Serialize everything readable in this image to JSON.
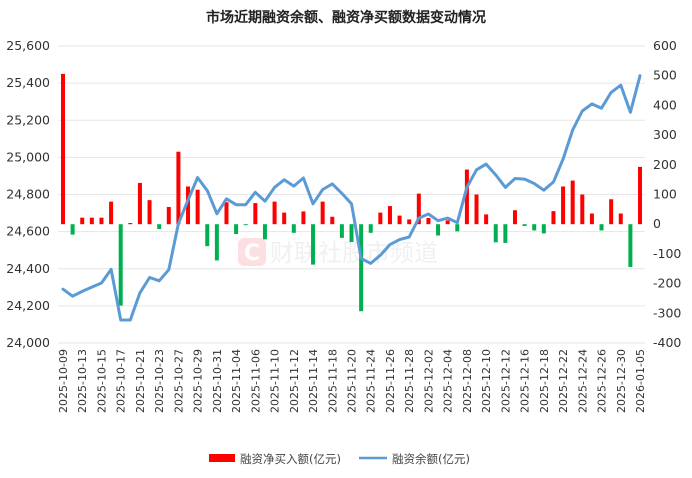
{
  "chart_data": {
    "type": "bar+line",
    "title": "市场近期融资余额、融资净买额数据变动情况",
    "watermark": "财联社股市频道",
    "legend_position": "bottom",
    "grid": true,
    "colors": {
      "positive_bar": "#ff0000",
      "negative_bar": "#00b050",
      "line": "#5b9bd5"
    },
    "x": [
      "2025-10-09",
      "2025-10-10",
      "2025-10-13",
      "2025-10-14",
      "2025-10-15",
      "2025-10-16",
      "2025-10-17",
      "2025-10-20",
      "2025-10-21",
      "2025-10-22",
      "2025-10-23",
      "2025-10-24",
      "2025-10-27",
      "2025-10-28",
      "2025-10-29",
      "2025-10-30",
      "2025-10-31",
      "2025-11-03",
      "2025-11-04",
      "2025-11-05",
      "2025-11-06",
      "2025-11-07",
      "2025-11-10",
      "2025-11-11",
      "2025-11-12",
      "2025-11-13",
      "2025-11-14",
      "2025-11-17",
      "2025-11-18",
      "2025-11-19",
      "2025-11-20",
      "2025-11-21",
      "2025-11-24",
      "2025-11-25",
      "2025-11-26",
      "2025-11-27",
      "2025-11-28",
      "2025-12-01",
      "2025-12-02",
      "2025-12-03",
      "2025-12-04",
      "2025-12-05",
      "2025-12-08",
      "2025-12-09",
      "2025-12-10",
      "2025-12-11",
      "2025-12-12",
      "2025-12-15",
      "2025-12-16",
      "2025-12-17",
      "2025-12-18",
      "2025-12-19",
      "2025-12-22",
      "2025-12-23",
      "2025-12-24",
      "2025-12-25",
      "2025-12-26",
      "2025-12-29",
      "2025-12-30",
      "2025-12-31",
      "2026-01-05"
    ],
    "x_tick_labels": [
      "2025-10-09",
      "2025-10-13",
      "2025-10-15",
      "2025-10-17",
      "2025-10-21",
      "2025-10-23",
      "2025-10-27",
      "2025-10-29",
      "2025-10-31",
      "2025-11-04",
      "2025-11-06",
      "2025-11-10",
      "2025-11-12",
      "2025-11-14",
      "2025-11-18",
      "2025-11-20",
      "2025-11-24",
      "2025-11-26",
      "2025-11-28",
      "2025-12-02",
      "2025-12-04",
      "2025-12-08",
      "2025-12-10",
      "2025-12-12",
      "2025-12-16",
      "2025-12-18",
      "2025-12-22",
      "2025-12-24",
      "2025-12-26",
      "2025-12-30",
      "2026-01-05"
    ],
    "y_left": {
      "range": [
        24000,
        25600
      ],
      "ticks": [
        "24,000",
        "24,200",
        "24,400",
        "24,600",
        "24,800",
        "25,000",
        "25,200",
        "25,400",
        "25,600"
      ]
    },
    "y_right": {
      "range": [
        -400,
        600
      ],
      "ticks": [
        "-400",
        "-300",
        "-200",
        "-100",
        "0",
        "100",
        "200",
        "300",
        "400",
        "500",
        "600"
      ]
    },
    "series": [
      {
        "name": "融资净买入额(亿元)",
        "type": "bar",
        "axis": "right",
        "values": [
          506,
          -35,
          22,
          22,
          22,
          76,
          -274,
          4,
          139,
          81,
          -16,
          58,
          244,
          127,
          116,
          -74,
          -122,
          74,
          -33,
          -3,
          71,
          -51,
          76,
          39,
          -29,
          43,
          -136,
          76,
          25,
          -46,
          -60,
          -293,
          -29,
          39,
          61,
          29,
          16,
          103,
          21,
          -38,
          13,
          -24,
          184,
          100,
          33,
          -61,
          -63,
          47,
          -6,
          -21,
          -31,
          44,
          127,
          147,
          100,
          36,
          -21,
          84,
          36,
          -144,
          193
        ]
      },
      {
        "name": "融资余额(亿元)",
        "type": "line",
        "axis": "left",
        "values": [
          24290,
          24252,
          24278,
          24301,
          24323,
          24397,
          24124,
          24124,
          24270,
          24353,
          24335,
          24395,
          24643,
          24770,
          24891,
          24821,
          24696,
          24777,
          24745,
          24745,
          24812,
          24764,
          24839,
          24879,
          24845,
          24889,
          24750,
          24827,
          24857,
          24806,
          24750,
          24455,
          24429,
          24473,
          24530,
          24557,
          24571,
          24673,
          24695,
          24659,
          24673,
          24648,
          24839,
          24933,
          24964,
          24905,
          24838,
          24886,
          24883,
          24859,
          24823,
          24868,
          24991,
          25148,
          25250,
          25288,
          25265,
          25350,
          25389,
          25243,
          25440
        ]
      }
    ]
  }
}
